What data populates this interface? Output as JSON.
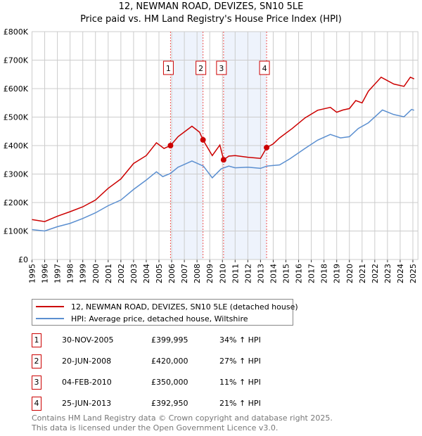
{
  "title": "12, NEWMAN ROAD, DEVIZES, SN10 5LE",
  "subtitle": "Price paid vs. HM Land Registry's House Price Index (HPI)",
  "legend": {
    "property": "12, NEWMAN ROAD, DEVIZES, SN10 5LE (detached house)",
    "hpi": "HPI: Average price, detached house, Wiltshire"
  },
  "colors": {
    "property": "#cc0000",
    "hpi": "#5b8fd0",
    "shade": "#eef3fc"
  },
  "sales": [
    {
      "num": "1",
      "date": "30-NOV-2005",
      "price": "£399,995",
      "hpi": "34% ↑ HPI"
    },
    {
      "num": "2",
      "date": "20-JUN-2008",
      "price": "£420,000",
      "hpi": "27% ↑ HPI"
    },
    {
      "num": "3",
      "date": "04-FEB-2010",
      "price": "£350,000",
      "hpi": "11% ↑ HPI"
    },
    {
      "num": "4",
      "date": "25-JUN-2013",
      "price": "£392,950",
      "hpi": "21% ↑ HPI"
    }
  ],
  "footer": {
    "line1": "Contains HM Land Registry data © Crown copyright and database right 2025.",
    "line2": "This data is licensed under the Open Government Licence v3.0."
  },
  "chart_data": {
    "type": "line",
    "xlim": [
      1995,
      2025.4
    ],
    "ylim": [
      0,
      800000
    ],
    "ytick_labels": [
      "£0",
      "£100K",
      "£200K",
      "£300K",
      "£400K",
      "£500K",
      "£600K",
      "£700K",
      "£800K"
    ],
    "yticks": [
      0,
      100000,
      200000,
      300000,
      400000,
      500000,
      600000,
      700000,
      800000
    ],
    "xticks": [
      1995,
      1996,
      1997,
      1998,
      1999,
      2000,
      2001,
      2002,
      2003,
      2004,
      2005,
      2006,
      2007,
      2008,
      2009,
      2010,
      2011,
      2012,
      2013,
      2014,
      2015,
      2016,
      2017,
      2018,
      2019,
      2020,
      2021,
      2022,
      2023,
      2024,
      2025
    ],
    "grid": true,
    "shaded_periods": [
      [
        2006.0,
        2008.47
      ],
      [
        2010.1,
        2013.48
      ]
    ],
    "sale_points": [
      {
        "label": "1",
        "x": 2005.91,
        "y": 399995
      },
      {
        "label": "2",
        "x": 2008.47,
        "y": 420000
      },
      {
        "label": "3",
        "x": 2010.09,
        "y": 350000
      },
      {
        "label": "4",
        "x": 2013.48,
        "y": 392950
      }
    ],
    "series": [
      {
        "name": "12, NEWMAN ROAD, DEVIZES, SN10 5LE (detached house)",
        "color": "#cc0000",
        "x": [
          1995,
          1996,
          1997,
          1998,
          1999,
          2000,
          2001,
          2002,
          2003,
          2004,
          2004.8,
          2005.4,
          2005.91,
          2006.5,
          2007.6,
          2008.2,
          2008.47,
          2009.2,
          2009.8,
          2010.09,
          2010.5,
          2011,
          2012,
          2013,
          2013.48,
          2014,
          2014.5,
          2015.5,
          2016.5,
          2017.5,
          2018.5,
          2019,
          2019.5,
          2020,
          2020.5,
          2021,
          2021.5,
          2022.5,
          2023.5,
          2024.3,
          2024.8,
          2025.1
        ],
        "y": [
          140000,
          133000,
          152000,
          168000,
          185000,
          209000,
          250000,
          283000,
          337000,
          365000,
          410000,
          390000,
          399995,
          431000,
          468000,
          447000,
          420000,
          365000,
          402000,
          350000,
          363000,
          365000,
          359000,
          355000,
          392950,
          406000,
          427000,
          460000,
          497000,
          524000,
          534000,
          517000,
          525000,
          530000,
          558000,
          550000,
          591000,
          640000,
          616000,
          608000,
          640000,
          634000
        ]
      },
      {
        "name": "HPI: Average price, detached house, Wiltshire",
        "color": "#5b8fd0",
        "x": [
          1995,
          1996,
          1997,
          1998,
          1999,
          2000,
          2001,
          2002,
          2003,
          2004,
          2004.8,
          2005.3,
          2005.9,
          2006.5,
          2007.6,
          2008.5,
          2009.2,
          2009.9,
          2010.5,
          2011,
          2012,
          2013,
          2013.5,
          2014.5,
          2015.3,
          2016.5,
          2017.5,
          2018.5,
          2019.3,
          2020,
          2020.7,
          2021.5,
          2022.6,
          2023.5,
          2024.3,
          2024.9,
          2025.1
        ],
        "y": [
          105000,
          100000,
          115000,
          127000,
          144000,
          164000,
          189000,
          209000,
          246000,
          279000,
          308000,
          291000,
          302000,
          324000,
          346000,
          328000,
          287000,
          318000,
          328000,
          322000,
          324000,
          320000,
          328000,
          332000,
          353000,
          390000,
          419000,
          439000,
          427000,
          431000,
          460000,
          480000,
          525000,
          509000,
          501000,
          527000,
          524000
        ]
      }
    ]
  }
}
